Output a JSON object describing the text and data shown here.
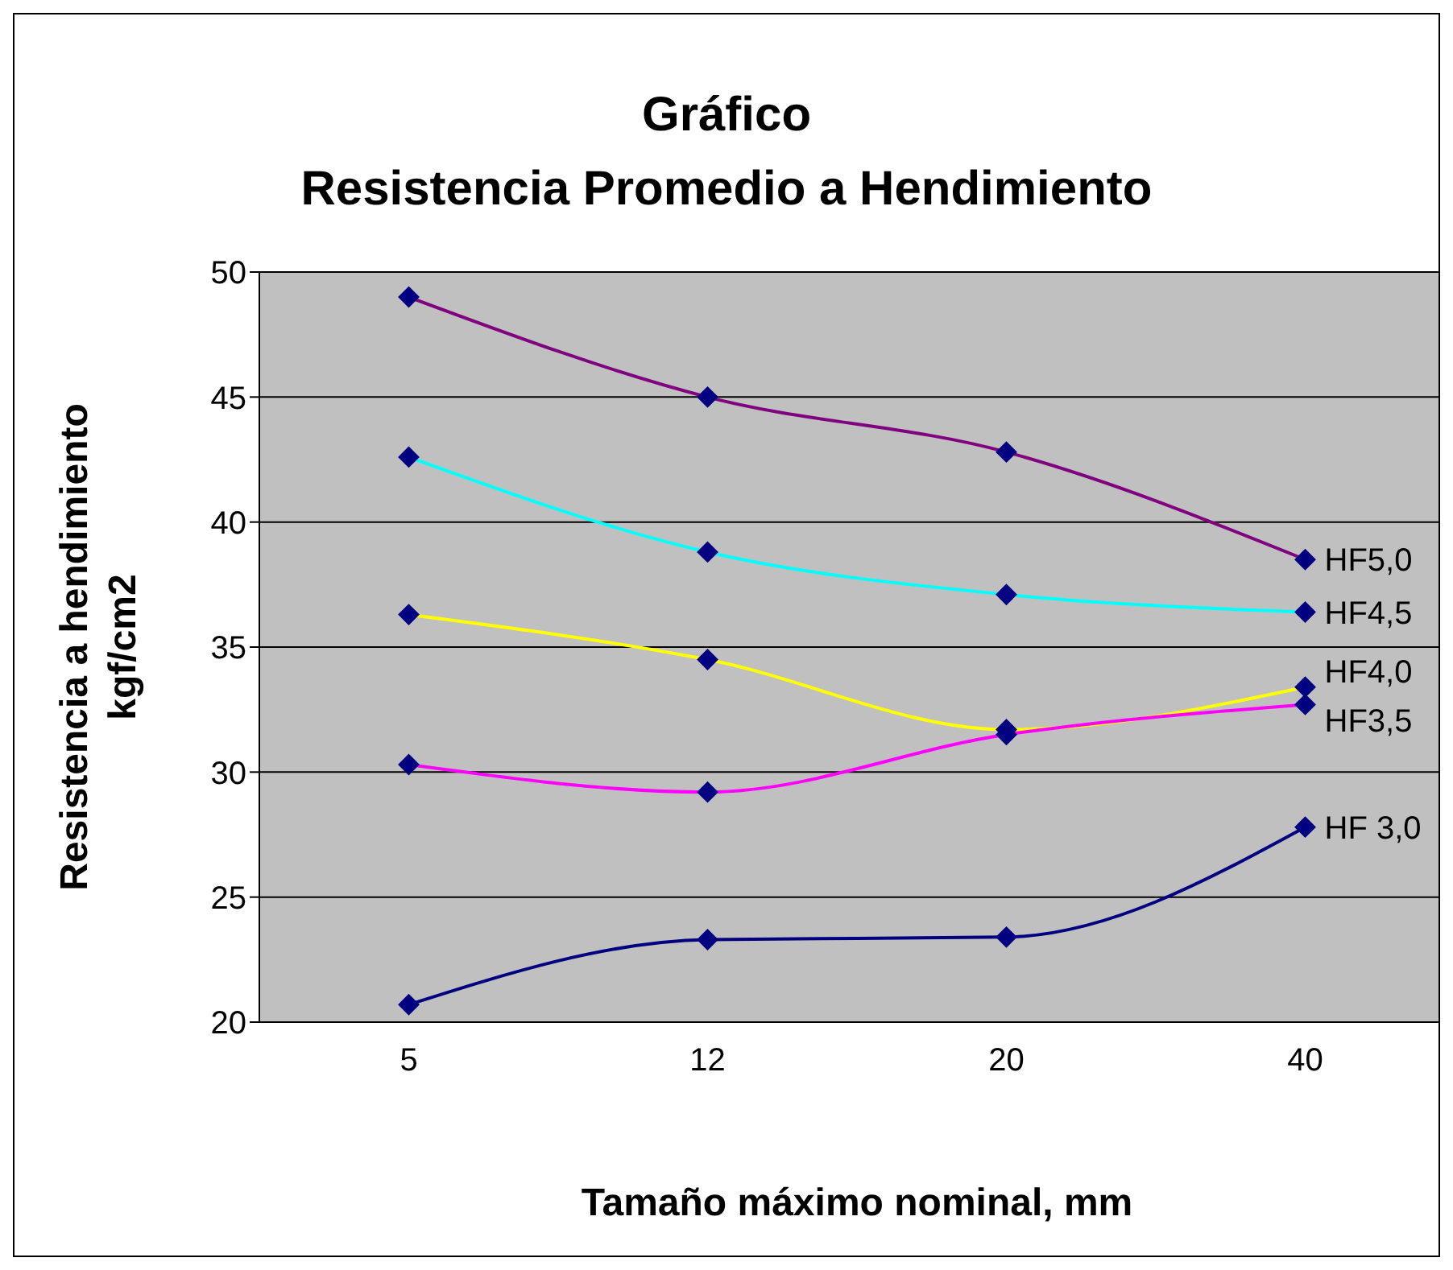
{
  "chart_data": {
    "type": "line",
    "title": "Gráfico",
    "subtitle": "Resistencia Promedio a Hendimiento",
    "xlabel": "Tamaño máximo nominal, mm",
    "ylabel": "Resistencia a hendimiento\nkgf/cm2",
    "categories": [
      "5",
      "12",
      "20",
      "40"
    ],
    "series": [
      {
        "name": "HF5,0",
        "color": "#800080",
        "values": [
          49,
          45,
          42.8,
          38.5
        ]
      },
      {
        "name": "HF4,5",
        "color": "#00ffff",
        "values": [
          42.6,
          38.8,
          37.1,
          36.4
        ]
      },
      {
        "name": "HF4,0",
        "color": "#ffff00",
        "values": [
          36.3,
          34.5,
          31.7,
          33.4
        ]
      },
      {
        "name": "HF3,5",
        "color": "#ff00ff",
        "values": [
          30.3,
          29.2,
          31.5,
          32.7
        ]
      },
      {
        "name": "HF 3,0",
        "color": "#000080",
        "values": [
          20.7,
          23.3,
          23.4,
          27.8
        ]
      }
    ],
    "ylim": [
      20,
      50
    ],
    "yticks": [
      20,
      25,
      30,
      35,
      40,
      45,
      50
    ],
    "grid": "y",
    "legend": false,
    "marker": "diamond",
    "line_style": "solid"
  }
}
